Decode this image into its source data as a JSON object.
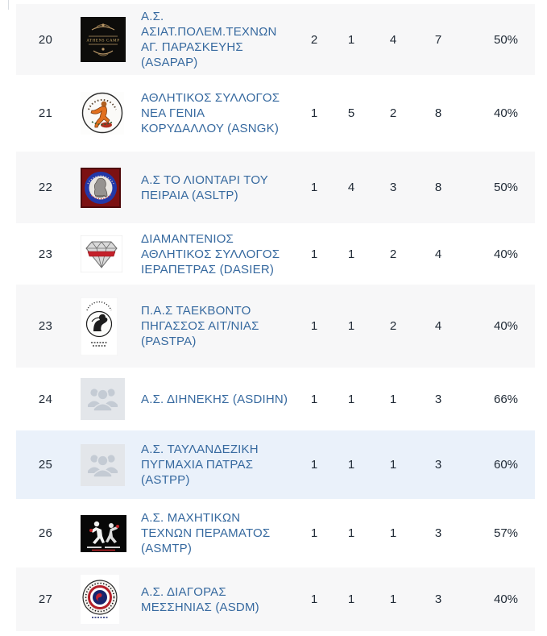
{
  "colors": {
    "row_alt_background": "#f7f7f8",
    "row_highlight_background": "#eaf1fa",
    "club_link_blue": "#36699f",
    "stat_text": "#1f2935",
    "placeholder_logo_bg": "#e3e6ea",
    "placeholder_logo_icon": "#c4cbd4"
  },
  "table": {
    "rows": [
      {
        "rank": "20",
        "club": "Α.Σ. ΑΣΙΑΤ.ΠΟΛΕΜ.ΤΕΧΝΩΝ ΑΓ. ΠΑΡΑΣΚΕΥΗΣ (ASAPAP)",
        "logo": "athens-camp-emblem",
        "values": [
          "2",
          "1",
          "4",
          "7",
          "50%"
        ],
        "highlighted": false
      },
      {
        "rank": "21",
        "club": "ΑΘΛΗΤΙΚΟΣ ΣΥΛΛΟΓΟΣ ΝΕΑ ΓΕΝΙΑ ΚΟΡΥΔΑΛΛΟΥ (ASNGK)",
        "logo": "kicking-figure-emblem",
        "values": [
          "1",
          "5",
          "2",
          "8",
          "40%"
        ],
        "highlighted": false
      },
      {
        "rank": "22",
        "club": "Α.Σ ΤΟ ΛΙΟΝΤΑΡΙ ΤΟΥ ΠΕΙΡΑΙΑ (ASLTP)",
        "logo": "lion-crest-emblem",
        "values": [
          "1",
          "4",
          "3",
          "8",
          "50%"
        ],
        "highlighted": false
      },
      {
        "rank": "23",
        "club": "ΔΙΑΜΑΝΤΕΝΙΟΣ ΑΘΛΗΤΙΚΟΣ ΣΥΛΛΟΓΟΣ ΙΕΡΑΠΕΤΡΑΣ (DASIER)",
        "logo": "diamond-emblem",
        "values": [
          "1",
          "1",
          "2",
          "4",
          "40%"
        ],
        "highlighted": false
      },
      {
        "rank": "23",
        "club": "Π.Α.Σ ΤΑΕΚΒΟΝΤΟ ΠΗΓΑΣΣΟΣ ΑΙΤ/ΝΙΑΣ (PASTPA)",
        "logo": "pegasus-emblem",
        "values": [
          "1",
          "1",
          "2",
          "4",
          "40%"
        ],
        "highlighted": false
      },
      {
        "rank": "24",
        "club": "Α.Σ. ΔΙΗΝΕΚΗΣ (ASDIHN)",
        "logo": "placeholder-group",
        "values": [
          "1",
          "1",
          "1",
          "3",
          "66%"
        ],
        "highlighted": false
      },
      {
        "rank": "25",
        "club": "Α.Σ. ΤΑΥΛΑΝΔΕΖΙΚΗ ΠΥΓΜΑΧΙΑ ΠΑΤΡΑΣ (ASTPP)",
        "logo": "placeholder-group",
        "values": [
          "1",
          "1",
          "1",
          "3",
          "60%"
        ],
        "highlighted": true
      },
      {
        "rank": "26",
        "club": "Α.Σ. ΜΑΧΗΤΙΚΩΝ ΤΕΧΝΩΝ ΠΕΡΑΜΑΤΟΣ (ASMTP)",
        "logo": "fighters-emblem",
        "values": [
          "1",
          "1",
          "1",
          "3",
          "57%"
        ],
        "highlighted": false
      },
      {
        "rank": "27",
        "club": "Α.Σ. ΔΙΑΓΟΡΑΣ ΜΕΣΣΗΝΙΑΣ (ASDM)",
        "logo": "round-crest-emblem",
        "values": [
          "1",
          "1",
          "1",
          "3",
          "40%"
        ],
        "highlighted": false
      }
    ]
  }
}
